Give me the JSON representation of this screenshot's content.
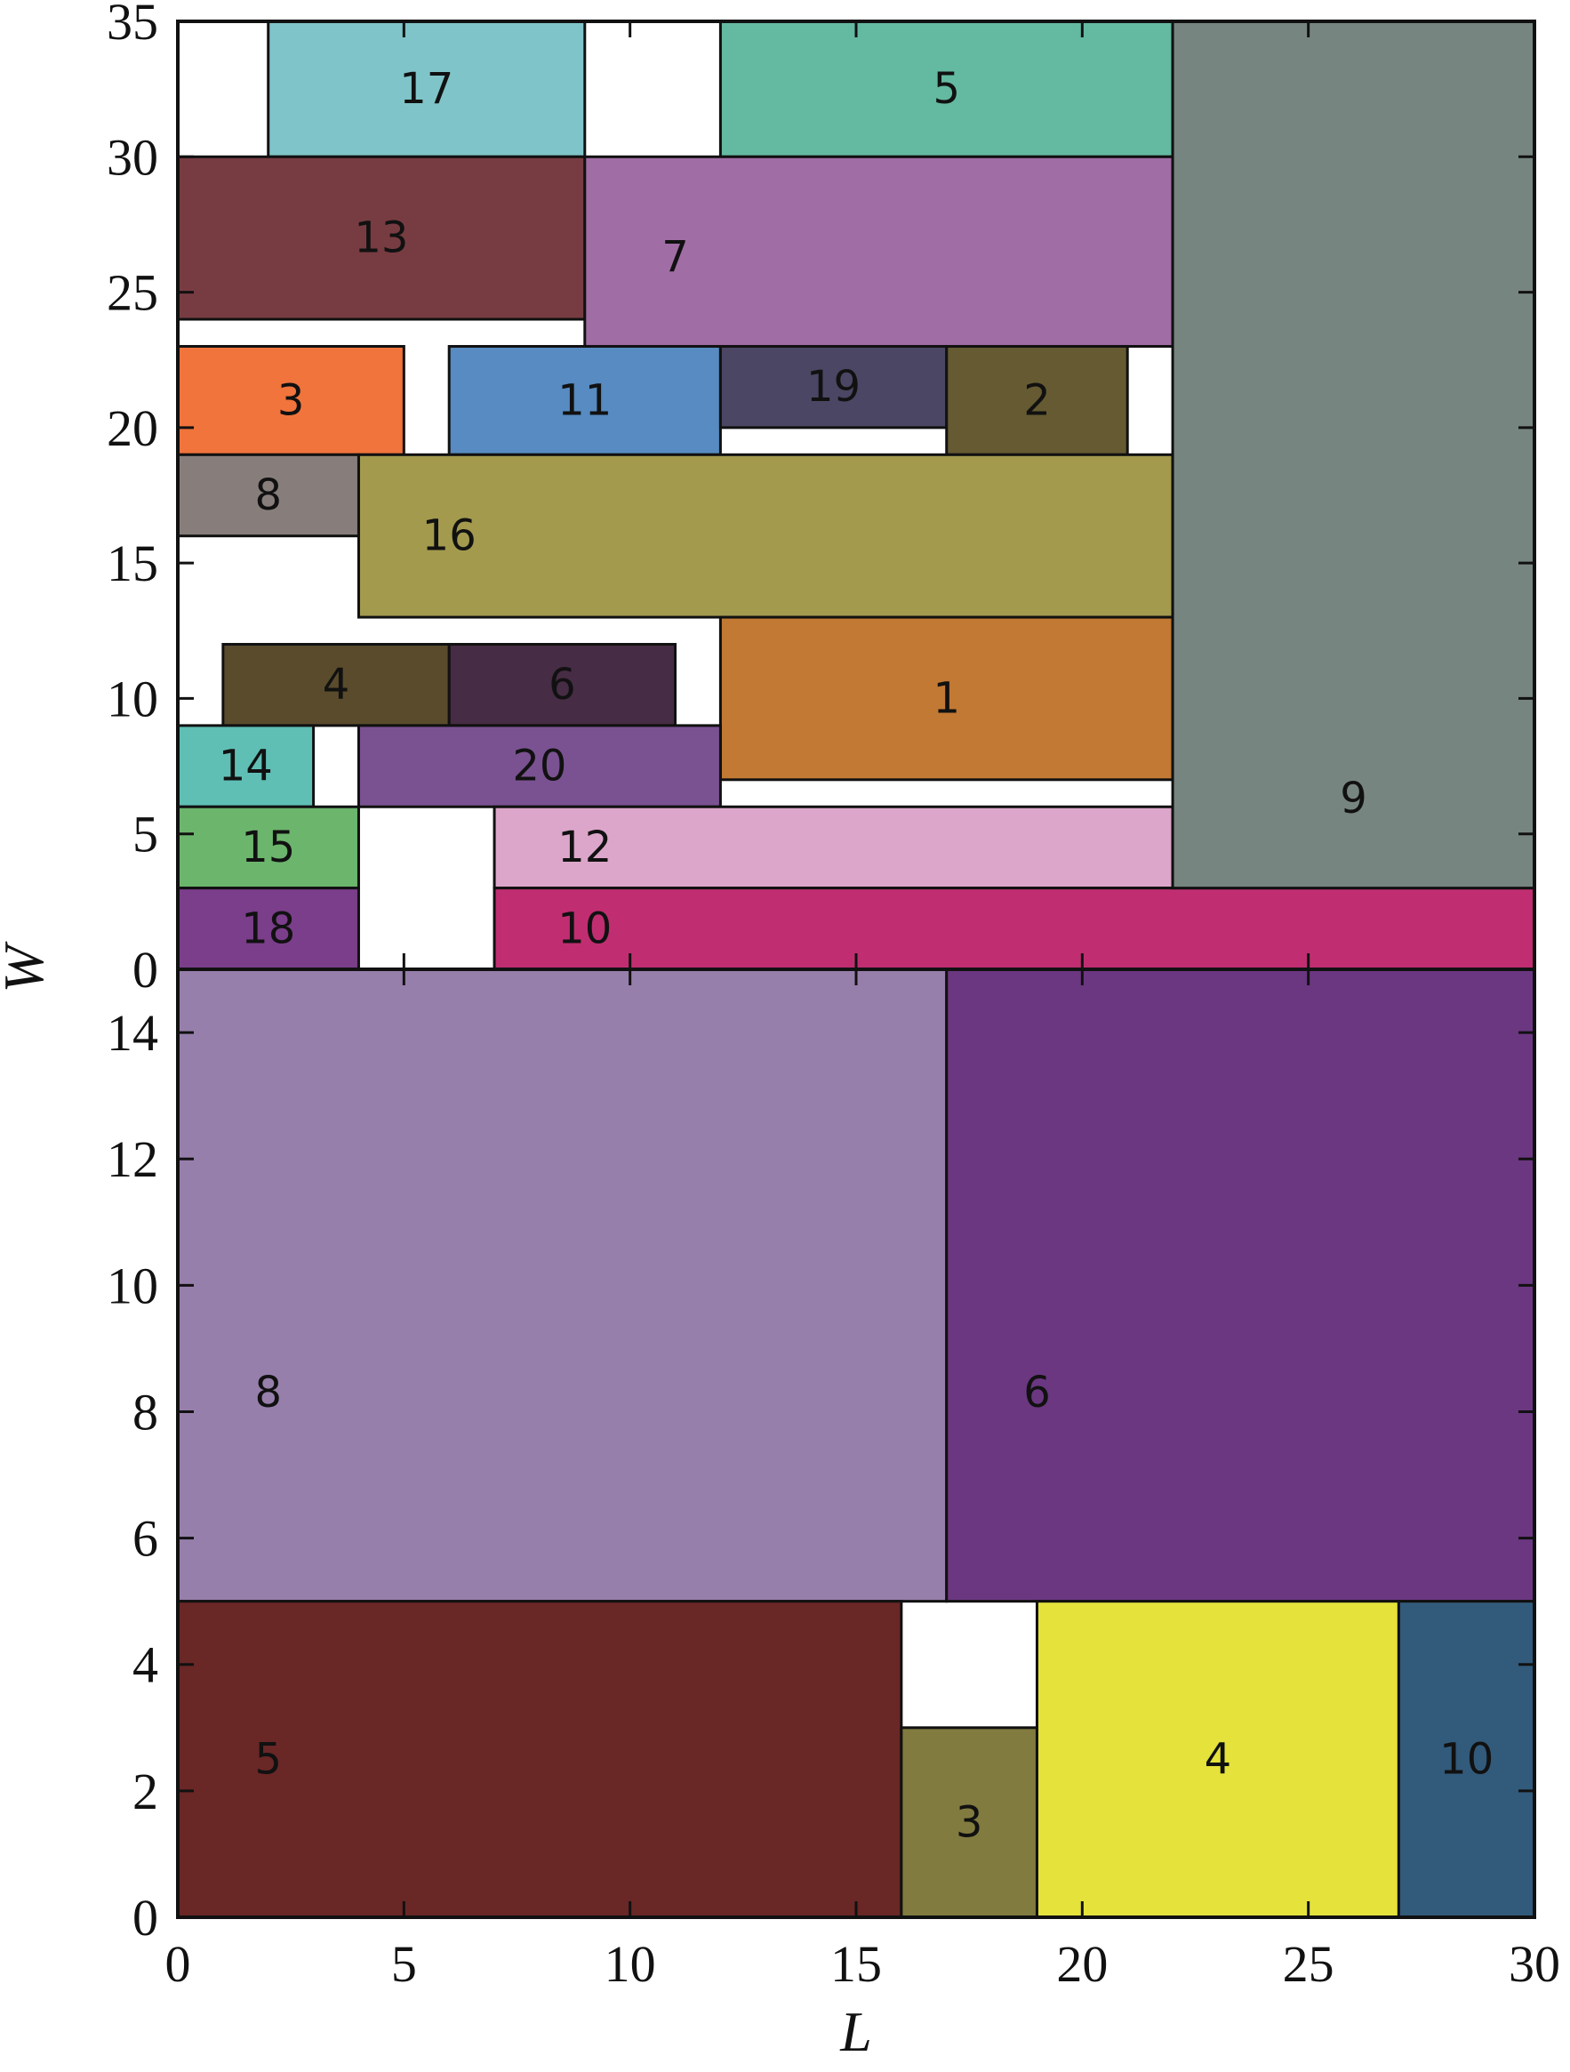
{
  "chart_data": [
    {
      "type": "rect-packing",
      "panel": "top",
      "xlim": [
        0,
        30
      ],
      "ylim": [
        0,
        35
      ],
      "xlabel": "",
      "ylabel": "",
      "y_ticks": [
        0,
        5,
        10,
        15,
        20,
        25,
        30,
        35
      ],
      "y_tick_labels": [
        "0",
        "5",
        "10",
        "15",
        "20",
        "25",
        "30",
        "35"
      ],
      "rects": [
        {
          "label": "17",
          "x0": 2,
          "y0": 30,
          "x1": 9,
          "y1": 35,
          "color": "#7fc4c9"
        },
        {
          "label": "5",
          "x0": 12,
          "y0": 30,
          "x1": 22,
          "y1": 35,
          "color": "#64b9a1"
        },
        {
          "label": "13",
          "x0": 0,
          "y0": 24,
          "x1": 9,
          "y1": 30,
          "color": "#773c42"
        },
        {
          "label": "7",
          "x0": 9,
          "y0": 23,
          "x1": 22,
          "y1": 30,
          "color": "#a16da5"
        },
        {
          "label": "3",
          "x0": 0,
          "y0": 19,
          "x1": 5,
          "y1": 23,
          "color": "#f0743c"
        },
        {
          "label": "11",
          "x0": 6,
          "y0": 19,
          "x1": 12,
          "y1": 23,
          "color": "#578bc1"
        },
        {
          "label": "19",
          "x0": 12,
          "y0": 20,
          "x1": 17,
          "y1": 23,
          "color": "#4b4663"
        },
        {
          "label": "2",
          "x0": 17,
          "y0": 19,
          "x1": 21,
          "y1": 23,
          "color": "#655a32"
        },
        {
          "label": "8",
          "x0": 0,
          "y0": 16,
          "x1": 4,
          "y1": 19,
          "color": "#877e7c"
        },
        {
          "label": "16",
          "x0": 4,
          "y0": 13,
          "x1": 22,
          "y1": 19,
          "color": "#a39a4e"
        },
        {
          "label": "4",
          "x0": 1,
          "y0": 9,
          "x1": 6,
          "y1": 12,
          "color": "#5a4b2c"
        },
        {
          "label": "6",
          "x0": 6,
          "y0": 9,
          "x1": 11,
          "y1": 12,
          "color": "#462c44"
        },
        {
          "label": "1",
          "x0": 12,
          "y0": 7,
          "x1": 22,
          "y1": 13,
          "color": "#c17933"
        },
        {
          "label": "14",
          "x0": 0,
          "y0": 6,
          "x1": 3,
          "y1": 9,
          "color": "#5fbfb5"
        },
        {
          "label": "20",
          "x0": 4,
          "y0": 6,
          "x1": 12,
          "y1": 9,
          "color": "#7a5291"
        },
        {
          "label": "15",
          "x0": 0,
          "y0": 3,
          "x1": 4,
          "y1": 6,
          "color": "#6cb56d"
        },
        {
          "label": "12",
          "x0": 7,
          "y0": 3,
          "x1": 22,
          "y1": 6,
          "color": "#dca6ca"
        },
        {
          "label": "18",
          "x0": 0,
          "y0": 0,
          "x1": 4,
          "y1": 3,
          "color": "#7b3e8b"
        },
        {
          "label": "10",
          "x0": 7,
          "y0": 0,
          "x1": 30,
          "y1": 3,
          "color": "#c02e71"
        },
        {
          "label": "9",
          "x0": 22,
          "y0": 3,
          "x1": 30,
          "y1": 35,
          "color": "#778580"
        }
      ]
    },
    {
      "type": "rect-packing",
      "panel": "bottom",
      "xlim": [
        0,
        30
      ],
      "ylim": [
        0,
        15
      ],
      "xlabel": "L",
      "ylabel": "W",
      "x_ticks": [
        0,
        5,
        10,
        15,
        20,
        25,
        30
      ],
      "x_tick_labels": [
        "0",
        "5",
        "10",
        "15",
        "20",
        "25",
        "30"
      ],
      "y_ticks": [
        0,
        2,
        4,
        6,
        8,
        10,
        12,
        14
      ],
      "y_tick_labels": [
        "0",
        "2",
        "4",
        "6",
        "8",
        "10",
        "12",
        "14"
      ],
      "rects": [
        {
          "label": "8",
          "x0": 0,
          "y0": 5,
          "x1": 17,
          "y1": 15,
          "color": "#977fab"
        },
        {
          "label": "6",
          "x0": 17,
          "y0": 5,
          "x1": 30,
          "y1": 15,
          "color": "#6b3781"
        },
        {
          "label": "5",
          "x0": 0,
          "y0": 0,
          "x1": 16,
          "y1": 5,
          "color": "#692726"
        },
        {
          "label": "3",
          "x0": 16,
          "y0": 0,
          "x1": 19,
          "y1": 3,
          "color": "#817b40"
        },
        {
          "label": "4",
          "x0": 19,
          "y0": 0,
          "x1": 27,
          "y1": 5,
          "color": "#e4e23b"
        },
        {
          "label": "10",
          "x0": 27,
          "y0": 0,
          "x1": 30,
          "y1": 5,
          "color": "#325a7a"
        }
      ]
    }
  ]
}
